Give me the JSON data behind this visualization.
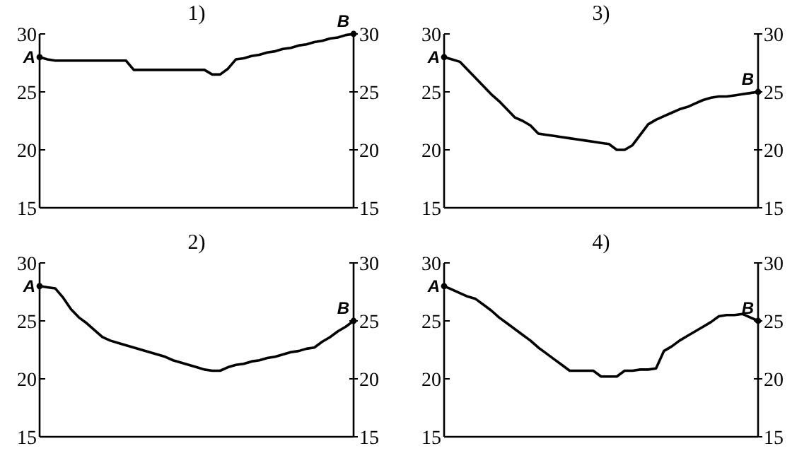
{
  "chart_data": [
    {
      "type": "line",
      "title": "1)",
      "categories": [
        null,
        null,
        null,
        null,
        null,
        null,
        null,
        null,
        null,
        null,
        null,
        null,
        null,
        null,
        null,
        null,
        null,
        null,
        null,
        null,
        null,
        null,
        null,
        null,
        null,
        null,
        null,
        null,
        null,
        null,
        null,
        null,
        null,
        null,
        null,
        null,
        null,
        null,
        null,
        null,
        null
      ],
      "ylim": [
        15,
        30
      ],
      "yticks": [
        15,
        20,
        25,
        30
      ],
      "y2lim": [
        15,
        30
      ],
      "y2ticks": [
        15,
        20,
        25,
        30
      ],
      "series": [
        {
          "color": "#000000",
          "values": [
            28,
            27.8,
            27.7,
            27.7,
            27.7,
            27.7,
            27.7,
            27.7,
            27.7,
            27.7,
            27.7,
            27.7,
            26.9,
            26.9,
            26.9,
            26.9,
            26.9,
            26.9,
            26.9,
            26.9,
            26.9,
            26.9,
            26.5,
            26.5,
            27,
            27.8,
            27.9,
            28.1,
            28.2,
            28.4,
            28.5,
            28.7,
            28.8,
            29,
            29.1,
            29.3,
            29.4,
            29.6,
            29.7,
            29.9,
            30
          ]
        }
      ],
      "annotations": [
        "A",
        "B"
      ]
    },
    {
      "type": "line",
      "title": "3)",
      "categories": [
        null,
        null,
        null,
        null,
        null,
        null,
        null,
        null,
        null,
        null,
        null,
        null,
        null,
        null,
        null,
        null,
        null,
        null,
        null,
        null,
        null,
        null,
        null,
        null,
        null,
        null,
        null,
        null,
        null,
        null,
        null,
        null,
        null,
        null,
        null,
        null,
        null,
        null,
        null,
        null,
        null
      ],
      "ylim": [
        15,
        30
      ],
      "yticks": [
        15,
        20,
        25,
        30
      ],
      "y2lim": [
        15,
        30
      ],
      "y2ticks": [
        15,
        20,
        25,
        30
      ],
      "series": [
        {
          "color": "#000000",
          "values": [
            28,
            27.8,
            27.6,
            26.9,
            26.2,
            25.5,
            24.8,
            24.2,
            23.5,
            22.8,
            22.5,
            22.1,
            21.4,
            21.3,
            21.2,
            21.1,
            21,
            20.9,
            20.8,
            20.7,
            20.6,
            20.5,
            20,
            20,
            20.4,
            21.3,
            22.2,
            22.6,
            22.9,
            23.2,
            23.5,
            23.7,
            24,
            24.3,
            24.5,
            24.6,
            24.6,
            24.7,
            24.8,
            24.9,
            25
          ]
        }
      ],
      "annotations": [
        "A",
        "B"
      ]
    },
    {
      "type": "line",
      "title": "2)",
      "categories": [
        null,
        null,
        null,
        null,
        null,
        null,
        null,
        null,
        null,
        null,
        null,
        null,
        null,
        null,
        null,
        null,
        null,
        null,
        null,
        null,
        null,
        null,
        null,
        null,
        null,
        null,
        null,
        null,
        null,
        null,
        null,
        null,
        null,
        null,
        null,
        null,
        null,
        null,
        null,
        null,
        null
      ],
      "ylim": [
        15,
        30
      ],
      "yticks": [
        15,
        20,
        25,
        30
      ],
      "y2lim": [
        15,
        30
      ],
      "y2ticks": [
        15,
        20,
        25,
        30
      ],
      "series": [
        {
          "color": "#000000",
          "values": [
            28,
            27.9,
            27.8,
            27,
            26,
            25.3,
            24.8,
            24.2,
            23.6,
            23.3,
            23.1,
            22.9,
            22.7,
            22.5,
            22.3,
            22.1,
            21.9,
            21.6,
            21.4,
            21.2,
            21,
            20.8,
            20.7,
            20.7,
            21,
            21.2,
            21.3,
            21.5,
            21.6,
            21.8,
            21.9,
            22.1,
            22.3,
            22.4,
            22.6,
            22.7,
            23.2,
            23.6,
            24.1,
            24.5,
            25
          ]
        }
      ],
      "annotations": [
        "A",
        "B"
      ]
    },
    {
      "type": "line",
      "title": "4)",
      "categories": [
        null,
        null,
        null,
        null,
        null,
        null,
        null,
        null,
        null,
        null,
        null,
        null,
        null,
        null,
        null,
        null,
        null,
        null,
        null,
        null,
        null,
        null,
        null,
        null,
        null,
        null,
        null,
        null,
        null,
        null,
        null,
        null,
        null,
        null,
        null,
        null,
        null,
        null,
        null,
        null,
        null
      ],
      "ylim": [
        15,
        30
      ],
      "yticks": [
        15,
        20,
        25,
        30
      ],
      "y2lim": [
        15,
        30
      ],
      "y2ticks": [
        15,
        20,
        25,
        30
      ],
      "series": [
        {
          "color": "#000000",
          "values": [
            28,
            27.7,
            27.4,
            27.1,
            26.9,
            26.4,
            25.9,
            25.3,
            24.8,
            24.3,
            23.8,
            23.3,
            22.7,
            22.2,
            21.7,
            21.2,
            20.7,
            20.7,
            20.7,
            20.7,
            20.2,
            20.2,
            20.2,
            20.7,
            20.7,
            20.8,
            20.8,
            20.9,
            22.4,
            22.8,
            23.3,
            23.7,
            24.1,
            24.5,
            24.9,
            25.4,
            25.5,
            25.5,
            25.6,
            25.3,
            25
          ]
        }
      ],
      "annotations": [
        "A",
        "B"
      ]
    }
  ]
}
